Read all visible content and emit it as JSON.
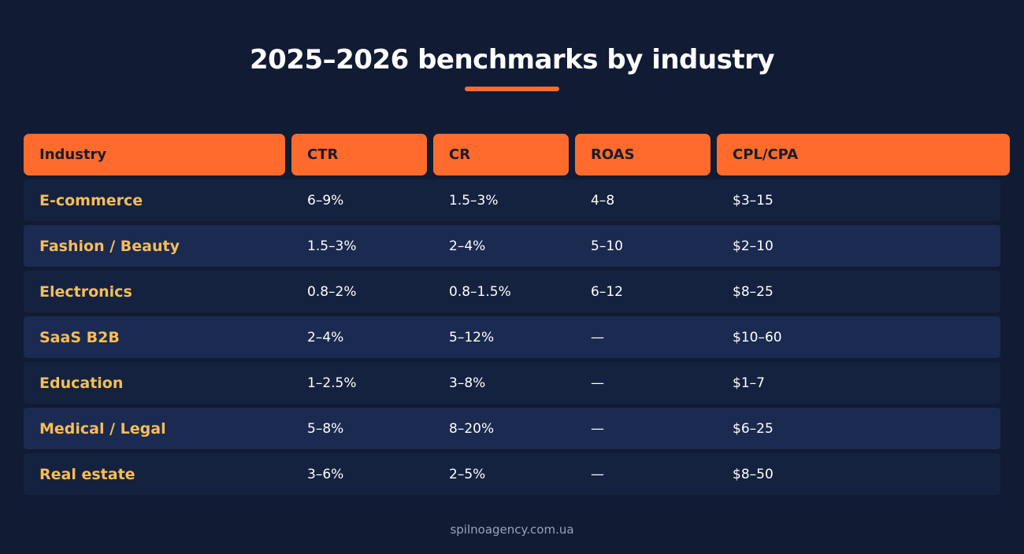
{
  "title": "2025–2026 benchmarks by industry",
  "footer": "spilnoagency.com.ua",
  "colors": {
    "background": "#111b33",
    "accent": "#ff6b2c",
    "industry_text": "#f7bd57"
  },
  "chart_data": {
    "type": "table",
    "title": "2025–2026 benchmarks by industry",
    "columns": [
      "Industry",
      "CTR",
      "CR",
      "ROAS",
      "CPL/CPA"
    ],
    "rows": [
      [
        "E-commerce",
        "6–9%",
        "1.5–3%",
        "4–8",
        "$3–15"
      ],
      [
        "Fashion / Beauty",
        "1.5–3%",
        "2–4%",
        "5–10",
        "$2–10"
      ],
      [
        "Electronics",
        "0.8–2%",
        "0.8–1.5%",
        "6–12",
        "$8–25"
      ],
      [
        "SaaS B2B",
        "2–4%",
        "5–12%",
        "—",
        "$10–60"
      ],
      [
        "Education",
        "1–2.5%",
        "3–8%",
        "—",
        "$1–7"
      ],
      [
        "Medical / Legal",
        "5–8%",
        "8–20%",
        "—",
        "$6–25"
      ],
      [
        "Real estate",
        "3–6%",
        "2–5%",
        "—",
        "$8–50"
      ]
    ]
  }
}
